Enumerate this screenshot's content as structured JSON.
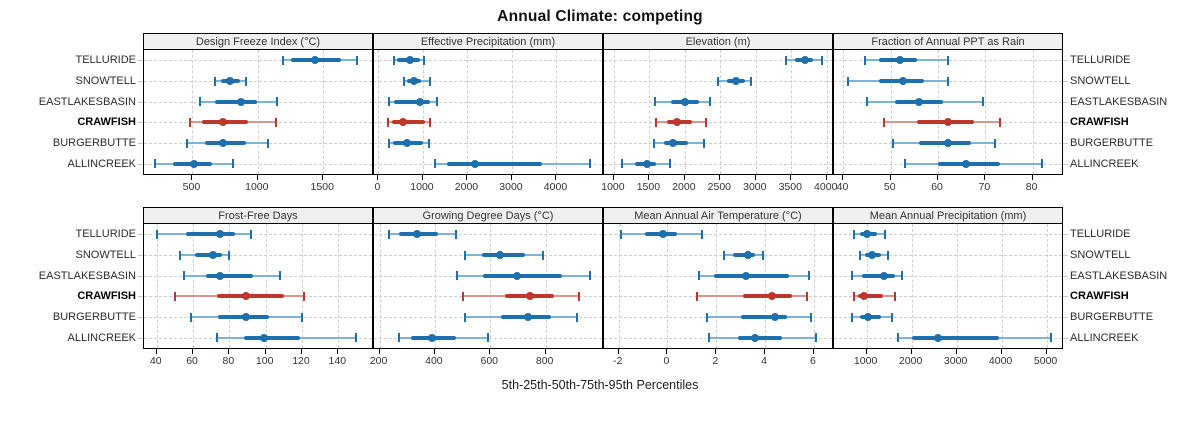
{
  "title": "Annual Climate: competing",
  "footer": "5th-25th-50th-75th-95th Percentiles",
  "sites": [
    "TELLURIDE",
    "SNOWTELL",
    "EASTLAKESBASIN",
    "CRAWFISH",
    "BURGERBUTTE",
    "ALLINCREEK"
  ],
  "highlight_site": "CRAWFISH",
  "colors": {
    "series_main": "#1d6fad",
    "series_light": "#7db4d8",
    "highlight_main": "#bf372c",
    "highlight_light": "#dd948c",
    "strip_bg": "#f0f0f0",
    "grid": "#cfcfcf",
    "panel_border": "#000000",
    "text": "#333333"
  },
  "chart_data": {
    "type": "trellis-dotplot-percentiles",
    "percentile_labels": [
      "5th",
      "25th",
      "50th",
      "75th",
      "95th"
    ],
    "legend_note": "red series = CRAWFISH (highlighted), blue = other sites",
    "panels": [
      {
        "title": "Design Freeze Index (°C)",
        "grid_row": 1,
        "xlim": [
          130,
          1865
        ],
        "ticks": [
          500,
          1000,
          1500
        ],
        "series": [
          {
            "site": "TELLURIDE",
            "p": [
              1190,
              1255,
              1440,
              1635,
              1760
            ]
          },
          {
            "site": "SNOWTELL",
            "p": [
              670,
              720,
              790,
              860,
              910
            ]
          },
          {
            "site": "EASTLAKESBASIN",
            "p": [
              560,
              670,
              870,
              990,
              1150
            ]
          },
          {
            "site": "CRAWFISH",
            "p": [
              480,
              570,
              730,
              925,
              1140
            ]
          },
          {
            "site": "BURGERBUTTE",
            "p": [
              460,
              600,
              735,
              910,
              1080
            ]
          },
          {
            "site": "ALLINCREEK",
            "p": [
              215,
              355,
              515,
              650,
              810
            ]
          }
        ]
      },
      {
        "title": "Effective Precipitation (mm)",
        "grid_row": 1,
        "xlim": [
          -100,
          5000
        ],
        "ticks": [
          0,
          1000,
          2000,
          3000,
          4000
        ],
        "series": [
          {
            "site": "TELLURIDE",
            "p": [
              360,
              420,
              700,
              940,
              1030
            ]
          },
          {
            "site": "SNOWTELL",
            "p": [
              570,
              645,
              790,
              960,
              1150
            ]
          },
          {
            "site": "EASTLAKESBASIN",
            "p": [
              240,
              350,
              940,
              1150,
              1325
            ]
          },
          {
            "site": "CRAWFISH",
            "p": [
              215,
              300,
              550,
              1040,
              1160
            ]
          },
          {
            "site": "BURGERBUTTE",
            "p": [
              240,
              325,
              645,
              1010,
              1125
            ]
          },
          {
            "site": "ALLINCREEK",
            "p": [
              1260,
              1550,
              2160,
              3680,
              4750
            ]
          }
        ]
      },
      {
        "title": "Elevation (m)",
        "grid_row": 1,
        "xlim": [
          860,
          4060
        ],
        "ticks": [
          1000,
          1500,
          2000,
          2500,
          3000,
          3500,
          4000
        ],
        "series": [
          {
            "site": "TELLURIDE",
            "p": [
              3420,
              3550,
              3690,
              3800,
              3930
            ]
          },
          {
            "site": "SNOWTELL",
            "p": [
              2470,
              2600,
              2720,
              2850,
              2930
            ]
          },
          {
            "site": "EASTLAKESBASIN",
            "p": [
              1580,
              1800,
              2000,
              2200,
              2350
            ]
          },
          {
            "site": "CRAWFISH",
            "p": [
              1600,
              1750,
              1890,
              2100,
              2300
            ]
          },
          {
            "site": "BURGERBUTTE",
            "p": [
              1570,
              1700,
              1830,
              2050,
              2270
            ]
          },
          {
            "site": "ALLINCREEK",
            "p": [
              1110,
              1300,
              1460,
              1600,
              1790
            ]
          }
        ]
      },
      {
        "title": "Fraction of Annual PPT as Rain",
        "grid_row": 1,
        "xlim": [
          38,
          86
        ],
        "ticks": [
          40,
          50,
          60,
          70,
          80
        ],
        "series": [
          {
            "site": "TELLURIDE",
            "p": [
              44.5,
              47.5,
              52,
              55.5,
              62
            ]
          },
          {
            "site": "SNOWTELL",
            "p": [
              41,
              47.5,
              52.5,
              57,
              62
            ]
          },
          {
            "site": "EASTLAKESBASIN",
            "p": [
              45,
              51,
              56,
              61,
              69.5
            ]
          },
          {
            "site": "CRAWFISH",
            "p": [
              48.5,
              55.5,
              62,
              67.5,
              73
            ]
          },
          {
            "site": "BURGERBUTTE",
            "p": [
              50.5,
              56,
              62,
              67,
              72
            ]
          },
          {
            "site": "ALLINCREEK",
            "p": [
              53,
              60,
              66,
              73,
              82
            ]
          }
        ]
      },
      {
        "title": "Frost-Free Days",
        "grid_row": 2,
        "xlim": [
          33,
          158
        ],
        "ticks": [
          40,
          60,
          80,
          100,
          120,
          140
        ],
        "series": [
          {
            "site": "TELLURIDE",
            "p": [
              40,
              56,
              75,
              83,
              92
            ]
          },
          {
            "site": "SNOWTELL",
            "p": [
              53,
              61,
              71,
              76,
              80
            ]
          },
          {
            "site": "EASTLAKESBASIN",
            "p": [
              55,
              67,
              75,
              93,
              108
            ]
          },
          {
            "site": "CRAWFISH",
            "p": [
              50,
              73,
              89,
              110,
              121
            ]
          },
          {
            "site": "BURGERBUTTE",
            "p": [
              59,
              74,
              89,
              102,
              120
            ]
          },
          {
            "site": "ALLINCREEK",
            "p": [
              73,
              88,
              99,
              119,
              150
            ]
          }
        ]
      },
      {
        "title": "Growing Degree Days (°C)",
        "grid_row": 2,
        "xlim": [
          180,
          1000
        ],
        "ticks": [
          200,
          400,
          600,
          800
        ],
        "series": [
          {
            "site": "TELLURIDE",
            "p": [
              235,
              270,
              335,
              410,
              475
            ]
          },
          {
            "site": "SNOWTELL",
            "p": [
              510,
              570,
              635,
              725,
              790
            ]
          },
          {
            "site": "EASTLAKESBASIN",
            "p": [
              480,
              575,
              695,
              860,
              960
            ]
          },
          {
            "site": "CRAWFISH",
            "p": [
              500,
              655,
              745,
              830,
              920
            ]
          },
          {
            "site": "BURGERBUTTE",
            "p": [
              510,
              640,
              735,
              820,
              915
            ]
          },
          {
            "site": "ALLINCREEK",
            "p": [
              270,
              315,
              390,
              475,
              590
            ]
          }
        ]
      },
      {
        "title": "Mean Annual Air Temperature (°C)",
        "grid_row": 2,
        "xlim": [
          -2.6,
          6.7
        ],
        "ticks": [
          -2,
          0,
          2,
          4,
          6
        ],
        "series": [
          {
            "site": "TELLURIDE",
            "p": [
              -1.9,
              -0.9,
              -0.2,
              0.4,
              1.4
            ]
          },
          {
            "site": "SNOWTELL",
            "p": [
              2.3,
              2.7,
              3.3,
              3.6,
              3.9
            ]
          },
          {
            "site": "EASTLAKESBASIN",
            "p": [
              1.3,
              1.9,
              3.2,
              5.0,
              5.8
            ]
          },
          {
            "site": "CRAWFISH",
            "p": [
              1.2,
              3.1,
              4.3,
              5.1,
              5.7
            ]
          },
          {
            "site": "BURGERBUTTE",
            "p": [
              1.6,
              3.0,
              4.4,
              4.9,
              5.9
            ]
          },
          {
            "site": "ALLINCREEK",
            "p": [
              1.7,
              2.9,
              3.6,
              4.7,
              6.1
            ]
          }
        ]
      },
      {
        "title": "Mean Annual Precipitation (mm)",
        "grid_row": 2,
        "xlim": [
          275,
          5320
        ],
        "ticks": [
          1000,
          2000,
          3000,
          4000,
          5000
        ],
        "series": [
          {
            "site": "TELLURIDE",
            "p": [
              710,
              855,
              1000,
              1220,
              1400
            ]
          },
          {
            "site": "SNOWTELL",
            "p": [
              855,
              965,
              1110,
              1310,
              1475
            ]
          },
          {
            "site": "EASTLAKESBASIN",
            "p": [
              670,
              890,
              1380,
              1640,
              1780
            ]
          },
          {
            "site": "CRAWFISH",
            "p": [
              710,
              805,
              940,
              1365,
              1620
            ]
          },
          {
            "site": "BURGERBUTTE",
            "p": [
              685,
              855,
              1040,
              1330,
              1570
            ]
          },
          {
            "site": "ALLINCREEK",
            "p": [
              1700,
              2000,
              2590,
              3950,
              5100
            ]
          }
        ]
      }
    ]
  }
}
